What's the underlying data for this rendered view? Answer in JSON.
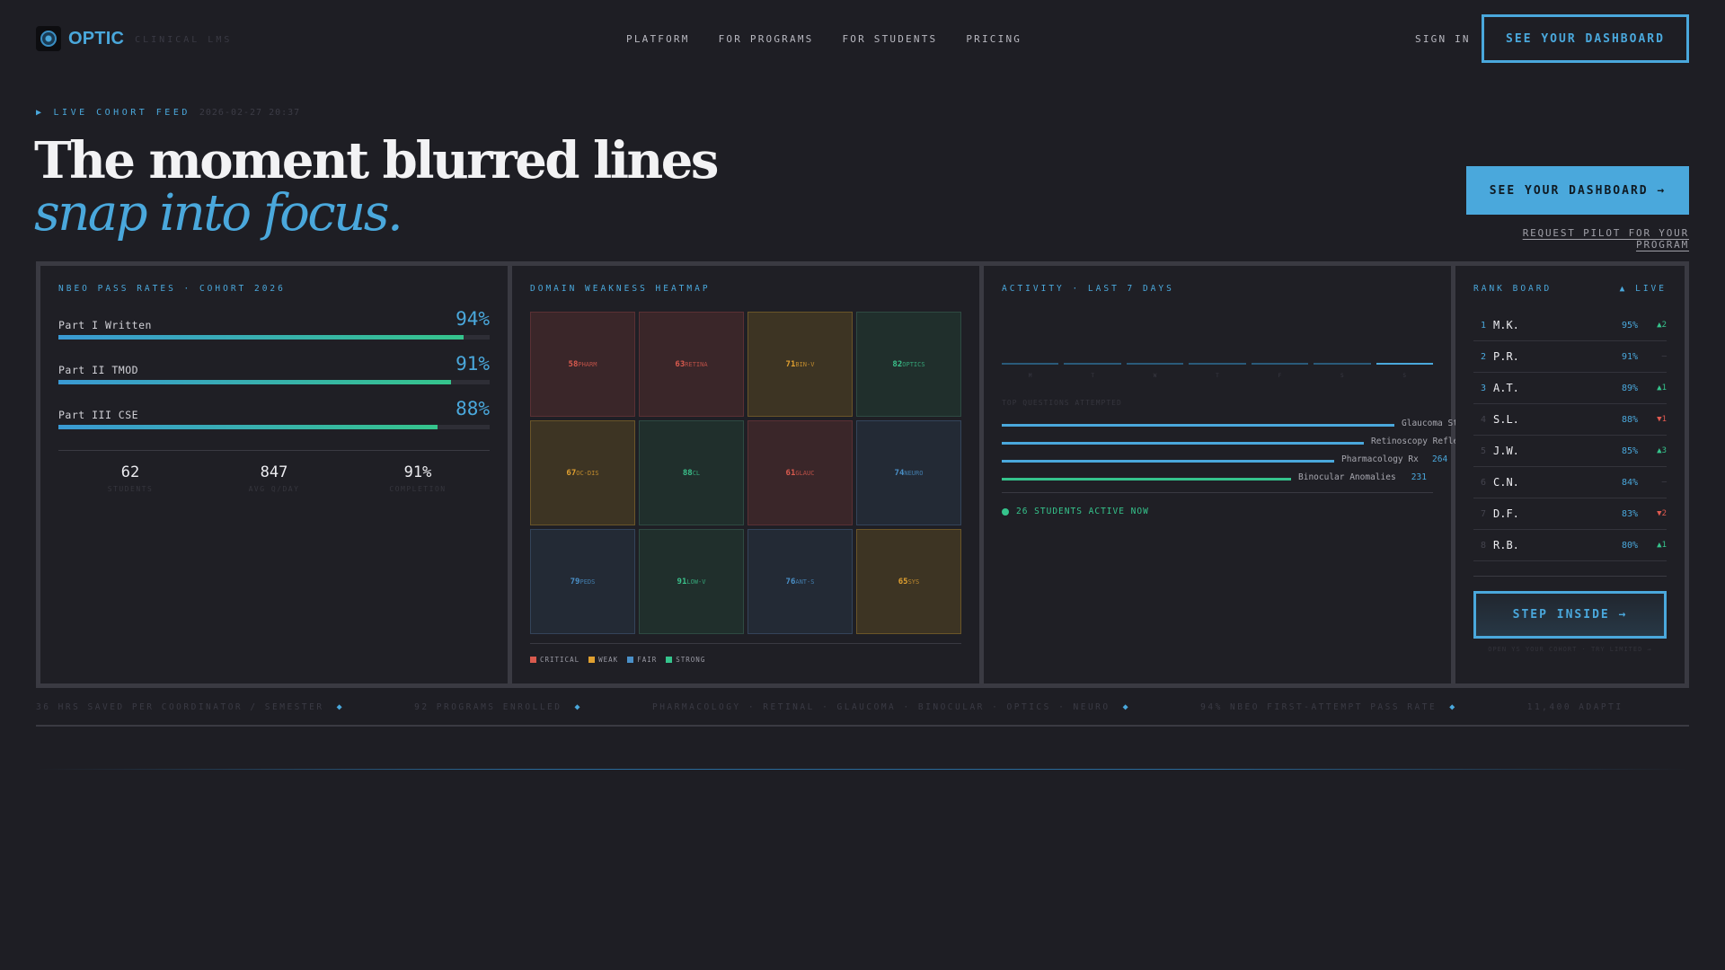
{
  "brand": {
    "name": "OPTIC",
    "tagline": "CLINICAL LMS"
  },
  "nav": {
    "items": [
      "PLATFORM",
      "FOR PROGRAMS",
      "FOR STUDENTS",
      "PRICING"
    ],
    "signin": "SIGN IN",
    "cta": "SEE YOUR DASHBOARD"
  },
  "hero": {
    "live_label": "LIVE COHORT FEED",
    "timestamp": "2026-02-27 20:37",
    "line1": "The moment blurred lines",
    "line2": "snap into focus.",
    "cta": "SEE YOUR DASHBOARD →",
    "pilot": "REQUEST PILOT FOR YOUR PROGRAM"
  },
  "pass_rates": {
    "title": "NBEO PASS RATES · COHORT 2026",
    "rows": [
      {
        "label": "Part I Written",
        "value": "94%",
        "fill": 0.94
      },
      {
        "label": "Part II TMOD",
        "value": "91%",
        "fill": 0.91
      },
      {
        "label": "Part III CSE",
        "value": "88%",
        "fill": 0.88
      }
    ],
    "stats": [
      {
        "num": "62",
        "label": "STUDENTS"
      },
      {
        "num": "847",
        "label": "AVG Q/DAY"
      },
      {
        "num": "91%",
        "label": "COMPLETION"
      }
    ]
  },
  "heatmap": {
    "title": "DOMAIN WEAKNESS HEATMAP",
    "cells": [
      {
        "value": "58",
        "name": "PHARM",
        "level": "red"
      },
      {
        "value": "63",
        "name": "RETINA",
        "level": "red"
      },
      {
        "value": "71",
        "name": "BIN-V",
        "level": "yel"
      },
      {
        "value": "82",
        "name": "OPTICS",
        "level": "grn"
      },
      {
        "value": "67",
        "name": "OC-DIS",
        "level": "yel"
      },
      {
        "value": "88",
        "name": "CL",
        "level": "grn"
      },
      {
        "value": "61",
        "name": "GLAUC",
        "level": "red"
      },
      {
        "value": "74",
        "name": "NEURO",
        "level": "blu"
      },
      {
        "value": "79",
        "name": "PEDS",
        "level": "blu"
      },
      {
        "value": "91",
        "name": "LOW-V",
        "level": "grn"
      },
      {
        "value": "76",
        "name": "ANT-S",
        "level": "blu"
      },
      {
        "value": "65",
        "name": "SYS",
        "level": "yel"
      }
    ],
    "legend": [
      {
        "label": "CRITICAL",
        "color": "#d95a4e"
      },
      {
        "label": "WEAK",
        "color": "#e0a030"
      },
      {
        "label": "FAIR",
        "color": "#4a90c8"
      },
      {
        "label": "STRONG",
        "color": "#35c48c"
      }
    ]
  },
  "activity": {
    "title": "ACTIVITY · LAST 7 DAYS",
    "days": [
      "M",
      "T",
      "W",
      "T",
      "F",
      "S",
      "S"
    ],
    "subtitle": "TOP QUESTIONS ATTEMPTED",
    "topics": [
      {
        "name": "Glaucoma St",
        "count": "",
        "bar": 0.91,
        "green": false
      },
      {
        "name": "Retinoscopy Refle",
        "count": "",
        "bar": 0.84,
        "green": false
      },
      {
        "name": "Pharmacology Rx",
        "count": "264",
        "bar": 0.77,
        "green": false
      },
      {
        "name": "Binocular Anomalies",
        "count": "231",
        "bar": 0.67,
        "green": true
      }
    ],
    "active_now": "26 STUDENTS ACTIVE NOW"
  },
  "rank_board": {
    "title": "RANK BOARD",
    "live": "▲ LIVE",
    "rows": [
      {
        "rank": "1",
        "name": "M.K.",
        "pct": "95%",
        "change": "▲2",
        "dir": "up"
      },
      {
        "rank": "2",
        "name": "P.R.",
        "pct": "91%",
        "change": "—",
        "dir": "flat"
      },
      {
        "rank": "3",
        "name": "A.T.",
        "pct": "89%",
        "change": "▲1",
        "dir": "up"
      },
      {
        "rank": "4",
        "name": "S.L.",
        "pct": "88%",
        "change": "▼1",
        "dir": "down"
      },
      {
        "rank": "5",
        "name": "J.W.",
        "pct": "85%",
        "change": "▲3",
        "dir": "up"
      },
      {
        "rank": "6",
        "name": "C.N.",
        "pct": "84%",
        "change": "—",
        "dir": "flat"
      },
      {
        "rank": "7",
        "name": "D.F.",
        "pct": "83%",
        "change": "▼2",
        "dir": "down"
      },
      {
        "rank": "8",
        "name": "R.B.",
        "pct": "80%",
        "change": "▲1",
        "dir": "up"
      }
    ],
    "cta": "STEP INSIDE →",
    "cta_sub": "OPEN YS YOUR COHORT · TRY LIMITED →"
  },
  "ticker": [
    "36 HRS SAVED PER COORDINATOR / SEMESTER",
    "92 PROGRAMS ENROLLED",
    "PHARMACOLOGY · RETINAL · GLAUCOMA · BINOCULAR · OPTICS · NEURO",
    "94% NBEO FIRST-ATTEMPT PASS RATE",
    "11,400 ADAPTI"
  ],
  "colors": {
    "accent": "#4aa8dc",
    "green": "#35c48c",
    "red": "#d95a4e",
    "yellow": "#e0a030",
    "bg": "#1e1e24"
  }
}
